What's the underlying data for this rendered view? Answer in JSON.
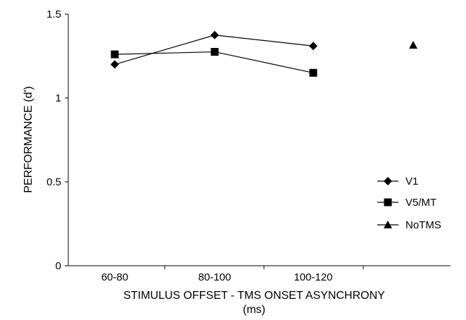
{
  "chart_data": {
    "type": "line",
    "xlabel": "STIMULUS OFFSET - TMS ONSET ASYNCHRONY",
    "xlabel_unit": "(ms)",
    "ylabel": "PERFORMANCE (d')",
    "categories": [
      "60-80",
      "80-100",
      "100-120",
      ""
    ],
    "ylim": [
      0,
      1.5
    ],
    "yticks": [
      0,
      0.5,
      1,
      1.5
    ],
    "ytick_labels": [
      "0",
      "0.5",
      "1",
      "1.5"
    ],
    "grid": false,
    "legend_position": "right",
    "series": [
      {
        "name": "V1",
        "marker": "diamond",
        "values": [
          1.2,
          1.375,
          1.31,
          null
        ]
      },
      {
        "name": "V5/MT",
        "marker": "square",
        "values": [
          1.26,
          1.275,
          1.15,
          null
        ]
      },
      {
        "name": "NoTMS",
        "marker": "triangle",
        "values": [
          null,
          null,
          null,
          1.315
        ]
      }
    ]
  }
}
